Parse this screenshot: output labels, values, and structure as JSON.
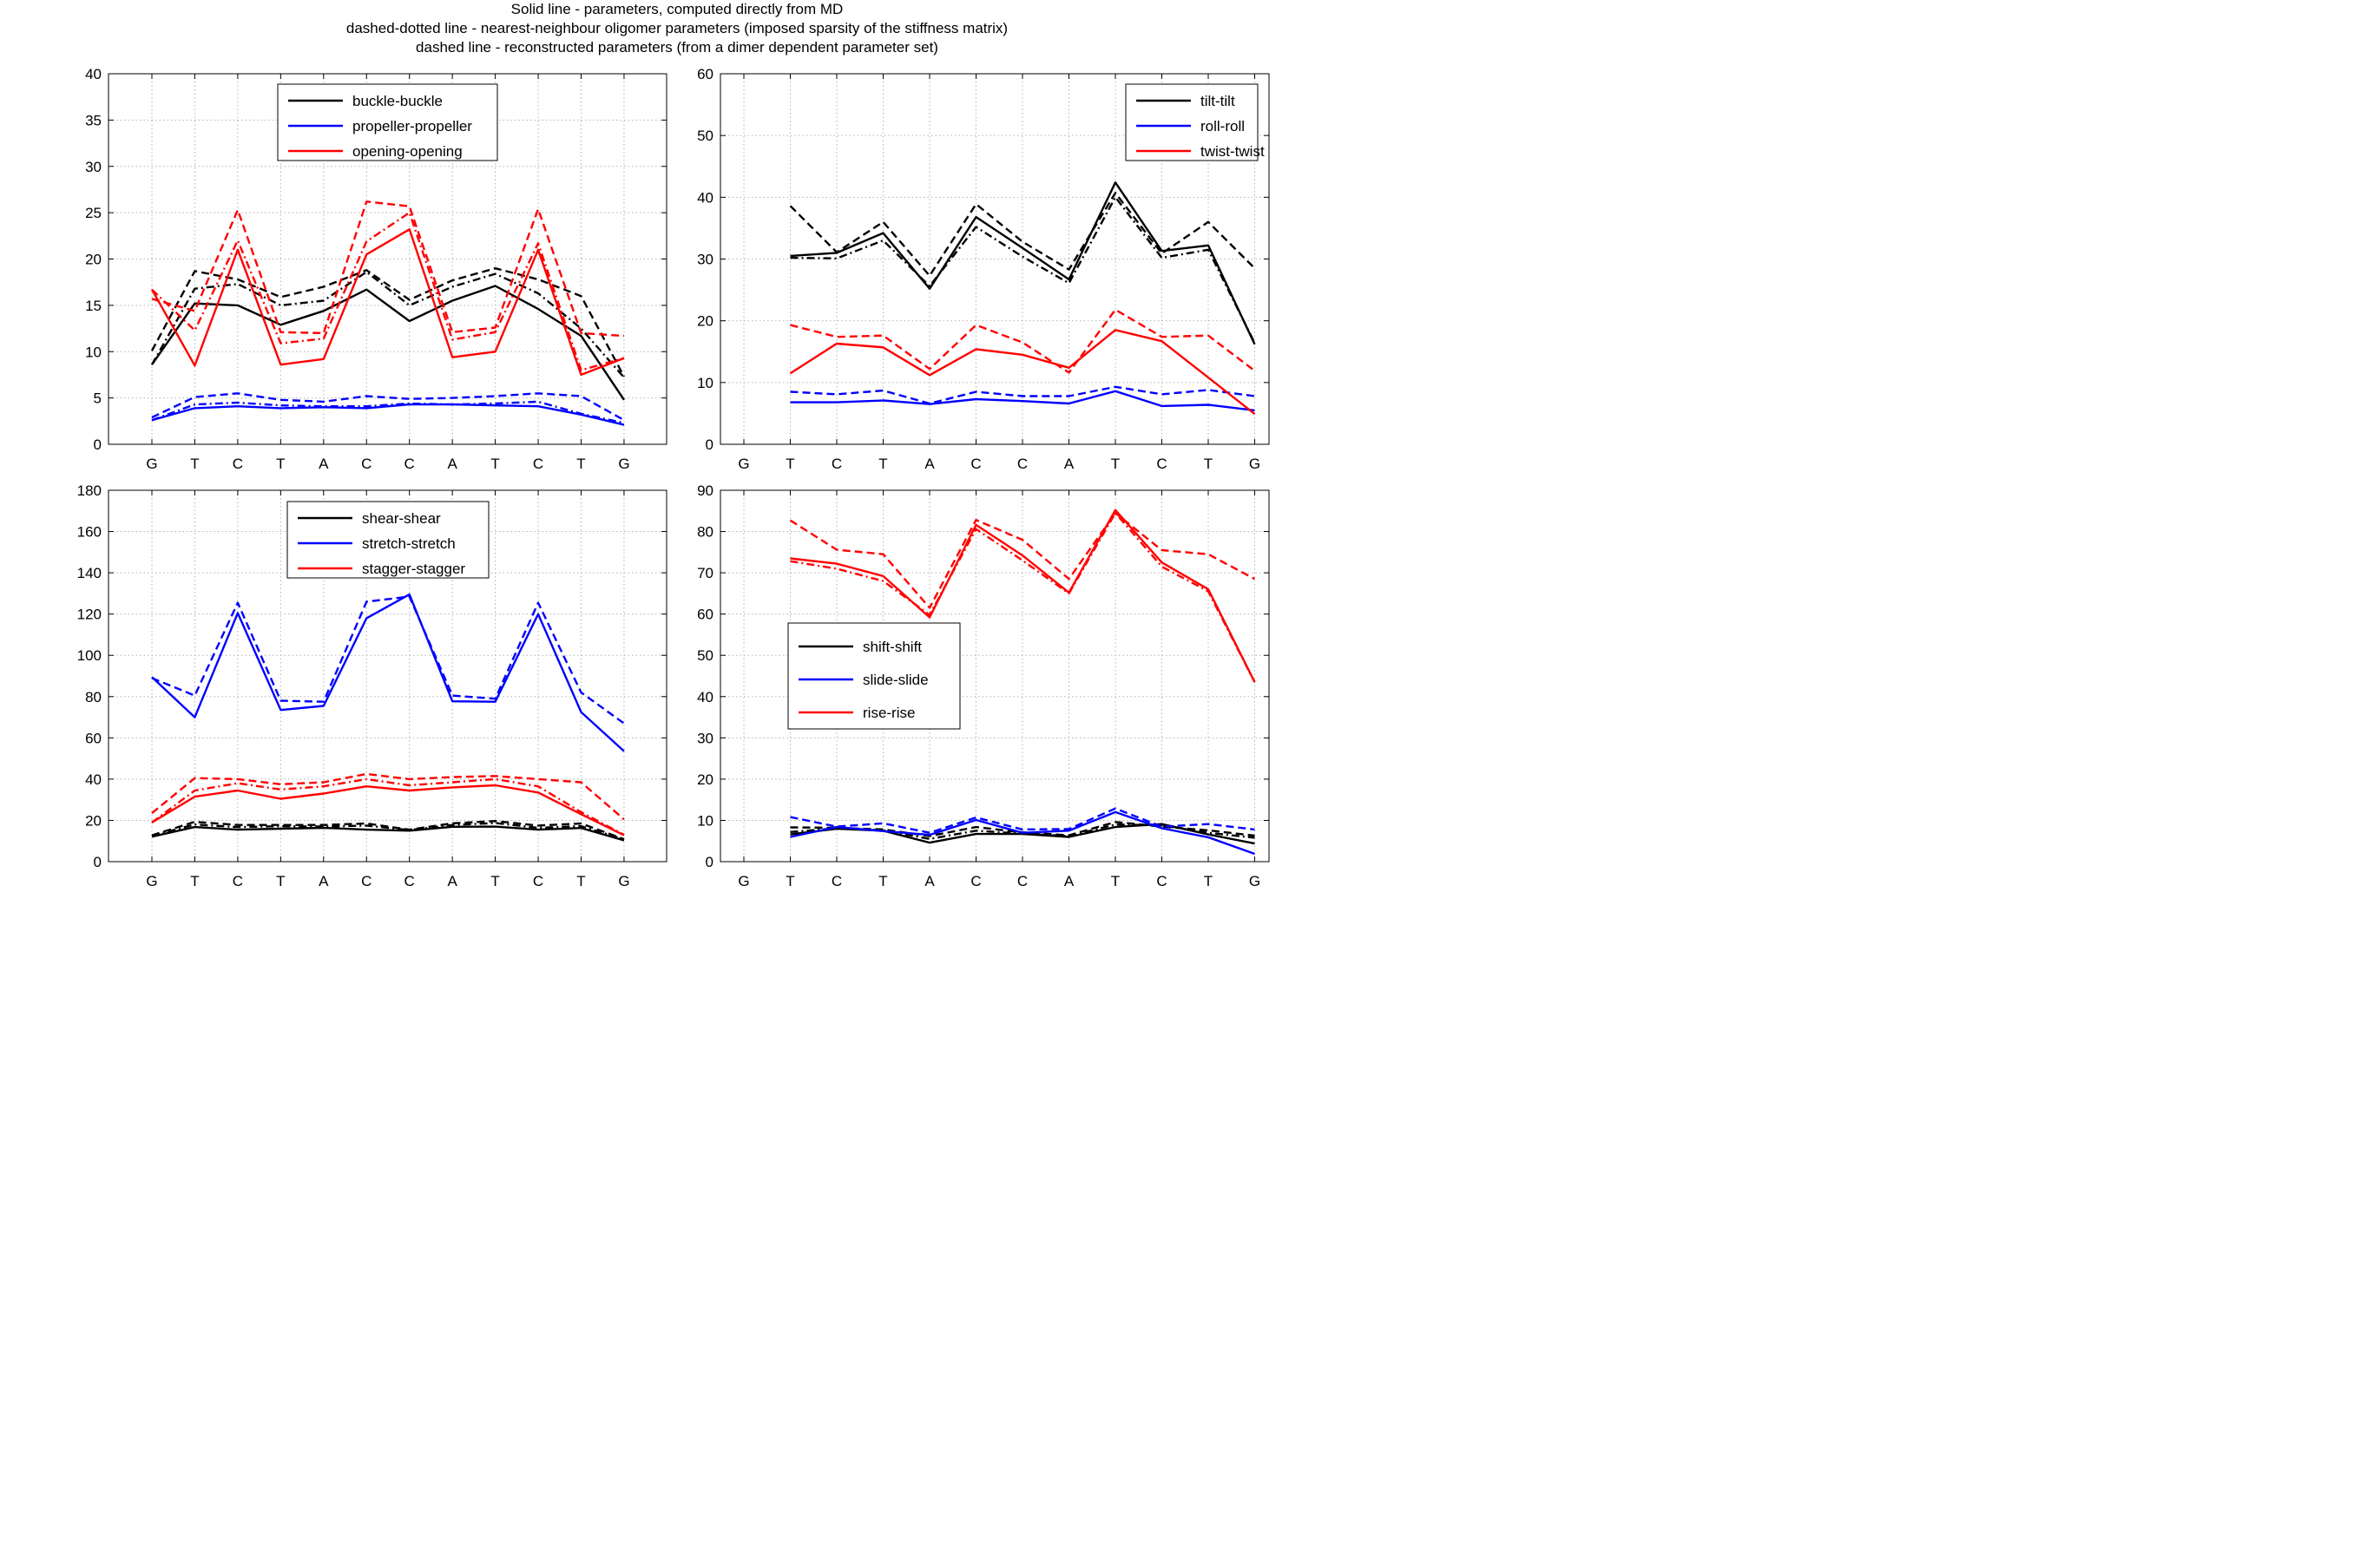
{
  "figure_title": [
    "Solid line - parameters, computed directly from MD",
    "dashed-dotted line - nearest-neighbour oligomer parameters (imposed sparsity of the stiffness matrix)",
    "dashed line - reconstructed parameters (from a dimer dependent parameter set)"
  ],
  "colors": {
    "black": "#000000",
    "blue": "#0000ff",
    "red": "#ff0000",
    "grid": "#b3b3b3"
  },
  "chart_data": [
    {
      "type": "line",
      "categories": [
        "G",
        "T",
        "C",
        "T",
        "A",
        "C",
        "C",
        "A",
        "T",
        "C",
        "T",
        "G"
      ],
      "ylim": [
        0,
        40
      ],
      "yticks": [
        0,
        5,
        10,
        15,
        20,
        25,
        30,
        35,
        40
      ],
      "legend": {
        "placement": "top-center",
        "entries": [
          "buckle-buckle",
          "propeller-propeller",
          "opening-opening"
        ]
      },
      "grid": true,
      "series": [
        {
          "name": "buckle-buckle",
          "color": "#000000",
          "style": "solid",
          "values": [
            8.6,
            15.2,
            15.0,
            12.9,
            14.4,
            16.7,
            13.3,
            15.5,
            17.1,
            14.6,
            11.7,
            4.8
          ]
        },
        {
          "name": "buckle-buckle",
          "color": "#000000",
          "style": "dashdot",
          "values": [
            8.6,
            16.8,
            17.3,
            15.0,
            15.5,
            18.6,
            15.0,
            17.0,
            18.4,
            16.3,
            12.5,
            7.2
          ]
        },
        {
          "name": "buckle-buckle",
          "color": "#000000",
          "style": "dashed",
          "values": [
            10.1,
            18.7,
            17.8,
            15.9,
            17.0,
            18.8,
            15.6,
            17.7,
            19.0,
            17.8,
            16.0,
            7.3
          ]
        },
        {
          "name": "propeller-propeller",
          "color": "#0000ff",
          "style": "solid",
          "values": [
            2.6,
            3.9,
            4.1,
            3.9,
            4.0,
            3.9,
            4.3,
            4.3,
            4.2,
            4.1,
            3.2,
            2.1
          ]
        },
        {
          "name": "propeller-propeller",
          "color": "#0000ff",
          "style": "dashdot",
          "values": [
            2.6,
            4.3,
            4.5,
            4.2,
            4.1,
            4.1,
            4.4,
            4.3,
            4.4,
            4.6,
            3.3,
            2.3
          ]
        },
        {
          "name": "propeller-propeller",
          "color": "#0000ff",
          "style": "dashed",
          "values": [
            2.9,
            5.1,
            5.5,
            4.8,
            4.6,
            5.2,
            4.9,
            5.0,
            5.2,
            5.5,
            5.2,
            2.6
          ]
        },
        {
          "name": "opening-opening",
          "color": "#ff0000",
          "style": "solid",
          "values": [
            16.7,
            8.5,
            21.0,
            8.6,
            9.2,
            20.5,
            23.2,
            9.4,
            10.0,
            21.0,
            7.5,
            9.3
          ]
        },
        {
          "name": "opening-opening",
          "color": "#ff0000",
          "style": "dashdot",
          "values": [
            16.7,
            12.3,
            22.0,
            10.9,
            11.4,
            21.9,
            25.0,
            11.3,
            12.1,
            21.7,
            8.0,
            9.3
          ]
        },
        {
          "name": "opening-opening",
          "color": "#ff0000",
          "style": "dashed",
          "values": [
            15.7,
            14.4,
            25.3,
            12.1,
            12.0,
            26.2,
            25.7,
            12.1,
            12.6,
            25.4,
            12.0,
            11.7
          ]
        }
      ]
    },
    {
      "type": "line",
      "categories": [
        "G",
        "T",
        "C",
        "T",
        "A",
        "C",
        "C",
        "A",
        "T",
        "C",
        "T",
        "G"
      ],
      "ylim": [
        0,
        60
      ],
      "yticks": [
        0,
        10,
        20,
        30,
        40,
        50,
        60
      ],
      "legend": {
        "placement": "top-right",
        "entries": [
          "tilt-tilt",
          "roll-roll",
          "twist-twist"
        ]
      },
      "grid": true,
      "series": [
        {
          "name": "tilt-tilt",
          "color": "#000000",
          "style": "solid",
          "values": [
            null,
            30.5,
            31.0,
            34.2,
            25.2,
            36.8,
            31.8,
            26.7,
            42.4,
            31.3,
            32.2,
            16.2
          ]
        },
        {
          "name": "tilt-tilt",
          "color": "#000000",
          "style": "dashdot",
          "values": [
            null,
            30.2,
            30.1,
            33.0,
            25.6,
            35.2,
            30.4,
            26.1,
            40.0,
            30.2,
            31.5,
            16.4
          ]
        },
        {
          "name": "tilt-tilt",
          "color": "#000000",
          "style": "dashed",
          "values": [
            null,
            38.6,
            31.1,
            36.0,
            27.3,
            38.9,
            32.8,
            28.3,
            40.7,
            30.9,
            36.0,
            28.5
          ]
        },
        {
          "name": "roll-roll",
          "color": "#0000ff",
          "style": "solid",
          "values": [
            null,
            6.8,
            6.8,
            7.1,
            6.5,
            7.3,
            7.0,
            6.6,
            8.6,
            6.2,
            6.4,
            5.5
          ]
        },
        {
          "name": "roll-roll",
          "color": "#0000ff",
          "style": "dashed",
          "values": [
            null,
            8.5,
            8.1,
            8.7,
            6.6,
            8.5,
            7.8,
            7.8,
            9.3,
            8.1,
            8.8,
            7.8
          ]
        },
        {
          "name": "twist-twist",
          "color": "#ff0000",
          "style": "solid",
          "values": [
            null,
            11.5,
            16.3,
            15.7,
            11.2,
            15.4,
            14.5,
            12.4,
            18.5,
            16.7,
            10.8,
            4.9
          ]
        },
        {
          "name": "twist-twist",
          "color": "#ff0000",
          "style": "dashed",
          "values": [
            null,
            19.3,
            17.4,
            17.6,
            12.2,
            19.3,
            16.5,
            11.6,
            21.8,
            17.4,
            17.6,
            11.9
          ]
        }
      ]
    },
    {
      "type": "line",
      "categories": [
        "G",
        "T",
        "C",
        "T",
        "A",
        "C",
        "C",
        "A",
        "T",
        "C",
        "T",
        "G"
      ],
      "ylim": [
        0,
        180
      ],
      "yticks": [
        0,
        20,
        40,
        60,
        80,
        100,
        120,
        140,
        160,
        180
      ],
      "legend": {
        "placement": "top-center",
        "entries": [
          "shear-shear",
          "stretch-stretch",
          "stagger-stagger"
        ]
      },
      "grid": true,
      "series": [
        {
          "name": "shear-shear",
          "color": "#000000",
          "style": "solid",
          "values": [
            12.1,
            16.8,
            15.5,
            16.0,
            16.4,
            15.5,
            15.0,
            16.9,
            17.0,
            15.5,
            16.3,
            10.3
          ]
        },
        {
          "name": "shear-shear",
          "color": "#000000",
          "style": "dashdot",
          "values": [
            12.6,
            18.0,
            16.8,
            17.2,
            17.0,
            17.5,
            15.3,
            17.8,
            18.7,
            16.4,
            17.2,
            10.8
          ]
        },
        {
          "name": "shear-shear",
          "color": "#000000",
          "style": "dashed",
          "values": [
            12.8,
            19.3,
            17.8,
            17.8,
            17.8,
            18.5,
            15.5,
            18.6,
            19.7,
            17.5,
            18.5,
            10.9
          ]
        },
        {
          "name": "stretch-stretch",
          "color": "#0000ff",
          "style": "solid",
          "values": [
            89.5,
            70.0,
            120.5,
            73.5,
            75.5,
            118.0,
            129.5,
            77.7,
            77.5,
            120.0,
            72.5,
            53.5
          ]
        },
        {
          "name": "stretch-stretch",
          "color": "#0000ff",
          "style": "dashed",
          "values": [
            89.0,
            80.5,
            125.5,
            78.0,
            77.5,
            126.0,
            128.5,
            80.5,
            79.0,
            125.5,
            82.0,
            67.0
          ]
        },
        {
          "name": "stagger-stagger",
          "color": "#ff0000",
          "style": "solid",
          "values": [
            19.0,
            31.5,
            34.5,
            30.5,
            33.0,
            36.5,
            34.5,
            36.0,
            37.0,
            33.5,
            23.0,
            12.8
          ]
        },
        {
          "name": "stagger-stagger",
          "color": "#ff0000",
          "style": "dashdot",
          "values": [
            19.0,
            34.5,
            38.0,
            35.0,
            36.5,
            40.0,
            37.0,
            38.5,
            40.0,
            36.5,
            24.0,
            13.0
          ]
        },
        {
          "name": "stagger-stagger",
          "color": "#ff0000",
          "style": "dashed",
          "values": [
            23.5,
            40.5,
            40.0,
            37.5,
            38.5,
            42.5,
            40.0,
            41.0,
            41.5,
            40.0,
            38.5,
            20.5
          ]
        }
      ]
    },
    {
      "type": "line",
      "categories": [
        "G",
        "T",
        "C",
        "T",
        "A",
        "C",
        "C",
        "A",
        "T",
        "C",
        "T",
        "G"
      ],
      "ylim": [
        0,
        90
      ],
      "yticks": [
        0,
        10,
        20,
        30,
        40,
        50,
        60,
        70,
        80,
        90
      ],
      "legend": {
        "placement": "center-left",
        "entries": [
          "shift-shift",
          "slide-slide",
          "rise-rise"
        ]
      },
      "grid": true,
      "series": [
        {
          "name": "shift-shift",
          "color": "#000000",
          "style": "solid",
          "values": [
            null,
            6.6,
            8.0,
            7.5,
            4.6,
            6.7,
            6.7,
            6.0,
            8.4,
            9.1,
            6.6,
            4.4
          ]
        },
        {
          "name": "shift-shift",
          "color": "#000000",
          "style": "dashdot",
          "values": [
            null,
            7.2,
            8.1,
            7.6,
            5.5,
            7.5,
            6.8,
            6.2,
            9.0,
            8.8,
            7.0,
            5.8
          ]
        },
        {
          "name": "shift-shift",
          "color": "#000000",
          "style": "dashed",
          "values": [
            null,
            8.3,
            8.2,
            7.8,
            6.2,
            8.4,
            7.1,
            6.4,
            9.6,
            8.5,
            7.6,
            6.3
          ]
        },
        {
          "name": "slide-slide",
          "color": "#0000ff",
          "style": "solid",
          "values": [
            null,
            6.0,
            8.4,
            7.4,
            6.5,
            10.1,
            7.0,
            7.5,
            12.0,
            8.1,
            5.9,
            1.9
          ]
        },
        {
          "name": "slide-slide",
          "color": "#0000ff",
          "style": "dashed",
          "values": [
            null,
            10.8,
            8.5,
            9.3,
            7.0,
            10.7,
            7.8,
            7.9,
            12.9,
            8.5,
            9.1,
            7.8
          ]
        },
        {
          "name": "rise-rise",
          "color": "#ff0000",
          "style": "solid",
          "values": [
            null,
            73.5,
            72.2,
            69.2,
            59.2,
            81.6,
            74.2,
            65.2,
            85.2,
            72.5,
            66.0,
            43.5
          ]
        },
        {
          "name": "rise-rise",
          "color": "#ff0000",
          "style": "dashdot",
          "values": [
            null,
            72.8,
            71.0,
            68.0,
            59.8,
            80.6,
            73.0,
            65.0,
            84.5,
            71.5,
            65.5,
            43.5
          ]
        },
        {
          "name": "rise-rise",
          "color": "#ff0000",
          "style": "dashed",
          "values": [
            null,
            82.7,
            75.6,
            74.5,
            61.5,
            82.8,
            78.0,
            68.5,
            84.5,
            75.5,
            74.5,
            68.5
          ]
        }
      ]
    }
  ]
}
